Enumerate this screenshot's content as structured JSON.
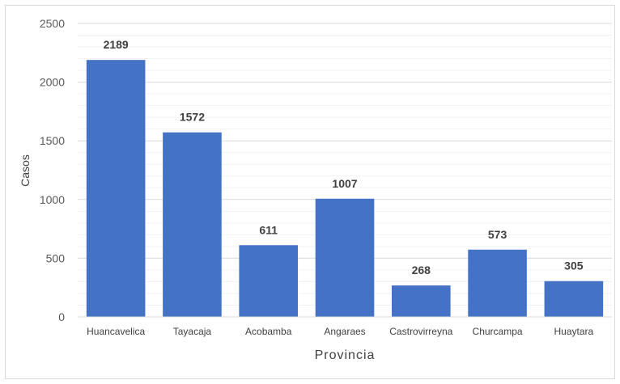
{
  "chart_data": {
    "type": "bar",
    "categories": [
      "Huancavelica",
      "Tayacaja",
      "Acobamba",
      "Angaraes",
      "Castrovirreyna",
      "Churcampa",
      "Huaytara"
    ],
    "series": [
      {
        "values": [
          2189,
          1572,
          611,
          1007,
          268,
          573,
          305
        ],
        "color": "#4472c4"
      }
    ],
    "xlabel": "Provincia",
    "ylabel": "Casos",
    "ylim": [
      0,
      2500
    ],
    "yticks": [
      0,
      500,
      1000,
      1500,
      2000,
      2500
    ],
    "grid": true,
    "data_labels": true,
    "legend": "none"
  }
}
